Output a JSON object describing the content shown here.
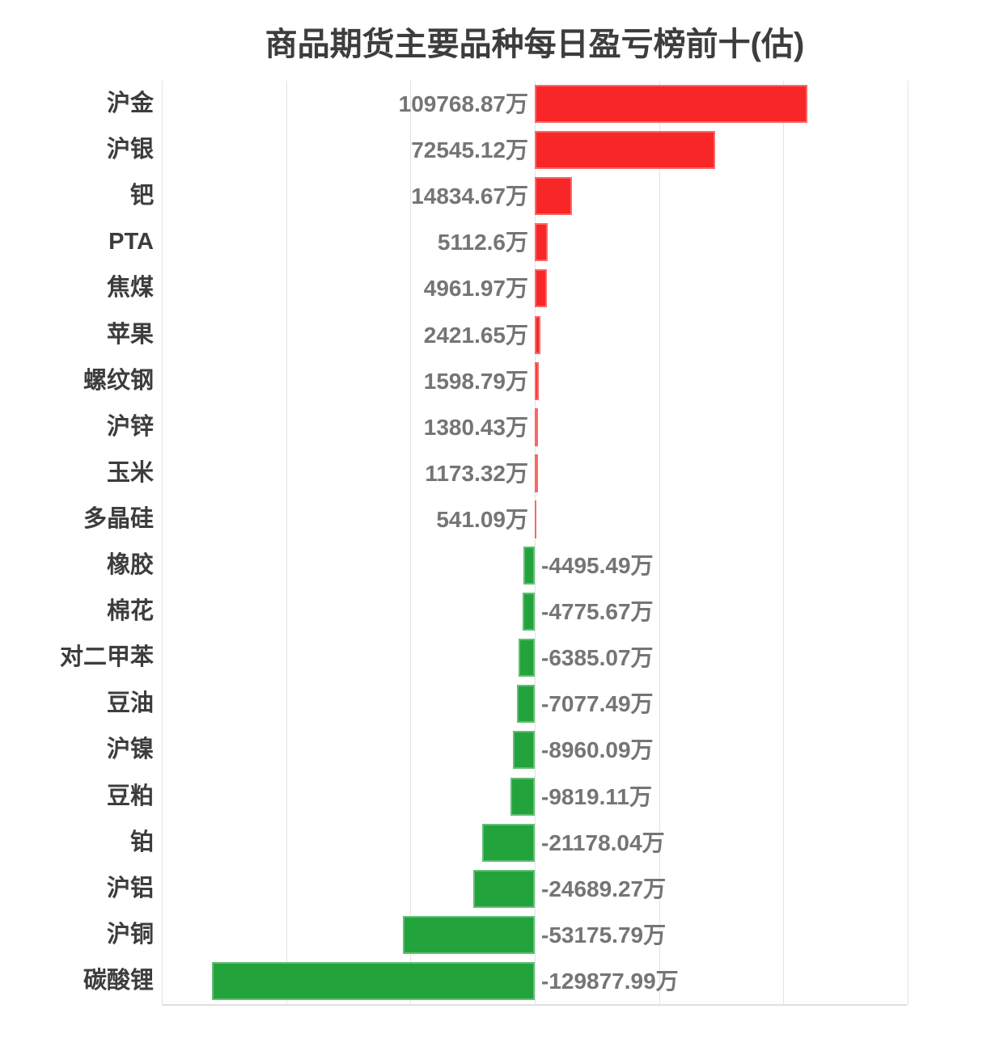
{
  "chart_data": {
    "type": "bar",
    "orientation": "horizontal",
    "title": "商品期货主要品种每日盈亏榜前十(估)",
    "unit": "万",
    "xlim": [
      -150000,
      150000
    ],
    "gridline_interval": 50000,
    "grid": true,
    "legend": "none",
    "x_tick_labels_visible": false,
    "colors": {
      "positive_bar": "#f82626",
      "negative_bar": "#23a33c",
      "title_text": "#3d3d3d",
      "category_text": "#3d3d3d",
      "value_text": "#757575",
      "grid_line": "#e3e3e3",
      "axis_line": "#e0e0e0",
      "background": "#ffffff"
    },
    "rows": [
      {
        "category": "沪金",
        "value": 109768.87,
        "value_label": "109768.87万"
      },
      {
        "category": "沪银",
        "value": 72545.12,
        "value_label": "72545.12万"
      },
      {
        "category": "钯",
        "value": 14834.67,
        "value_label": "14834.67万"
      },
      {
        "category": "PTA",
        "value": 5112.6,
        "value_label": "5112.6万"
      },
      {
        "category": "焦煤",
        "value": 4961.97,
        "value_label": "4961.97万"
      },
      {
        "category": "苹果",
        "value": 2421.65,
        "value_label": "2421.65万"
      },
      {
        "category": "螺纹钢",
        "value": 1598.79,
        "value_label": "1598.79万"
      },
      {
        "category": "沪锌",
        "value": 1380.43,
        "value_label": "1380.43万"
      },
      {
        "category": "玉米",
        "value": 1173.32,
        "value_label": "1173.32万"
      },
      {
        "category": "多晶硅",
        "value": 541.09,
        "value_label": "541.09万"
      },
      {
        "category": "橡胶",
        "value": -4495.49,
        "value_label": "-4495.49万"
      },
      {
        "category": "棉花",
        "value": -4775.67,
        "value_label": "-4775.67万"
      },
      {
        "category": "对二甲苯",
        "value": -6385.07,
        "value_label": "-6385.07万"
      },
      {
        "category": "豆油",
        "value": -7077.49,
        "value_label": "-7077.49万"
      },
      {
        "category": "沪镍",
        "value": -8960.09,
        "value_label": "-8960.09万"
      },
      {
        "category": "豆粕",
        "value": -9819.11,
        "value_label": "-9819.11万"
      },
      {
        "category": "铂",
        "value": -21178.04,
        "value_label": "-21178.04万"
      },
      {
        "category": "沪铝",
        "value": -24689.27,
        "value_label": "-24689.27万"
      },
      {
        "category": "沪铜",
        "value": -53175.79,
        "value_label": "-53175.79万"
      },
      {
        "category": "碳酸锂",
        "value": -129877.99,
        "value_label": "-129877.99万"
      }
    ]
  }
}
